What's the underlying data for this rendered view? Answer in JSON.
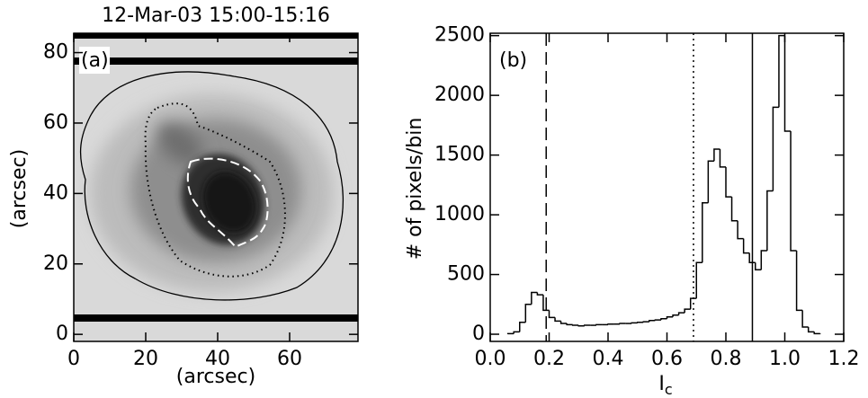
{
  "chart_data": [
    {
      "type": "image",
      "title": "12-Mar-03 15:00-15:16",
      "panel_label": "(a)",
      "x_label": "(arcsec)",
      "y_label": "(arcsec)",
      "xlim": [
        0,
        79
      ],
      "ylim": [
        -2,
        85.5
      ],
      "xticks": [
        0,
        20,
        40,
        60
      ],
      "yticks": [
        0,
        20,
        40,
        60,
        80
      ]
    },
    {
      "type": "histogram",
      "panel_label": "(b)",
      "x_label": "I",
      "x_label_sub": "c",
      "y_label": "# of pixels/bin",
      "xlim": [
        0,
        1.2
      ],
      "ylim": [
        -60,
        2520
      ],
      "xticks": [
        {
          "value": 0,
          "label": "0.0"
        },
        0.2,
        0.4,
        0.6,
        0.8,
        {
          "value": 1,
          "label": "1.0"
        },
        1.2
      ],
      "yticks": [
        0,
        500,
        1000,
        1500,
        2000,
        2500
      ],
      "color": "#000000",
      "bins": [
        0.06,
        0.08,
        0.1,
        0.12,
        0.14,
        0.16,
        0.18,
        0.2,
        0.22,
        0.24,
        0.26,
        0.28,
        0.3,
        0.32,
        0.34,
        0.36,
        0.38,
        0.4,
        0.42,
        0.44,
        0.46,
        0.48,
        0.5,
        0.52,
        0.54,
        0.56,
        0.58,
        0.6,
        0.62,
        0.64,
        0.66,
        0.68,
        0.7,
        0.72,
        0.74,
        0.76,
        0.78,
        0.8,
        0.82,
        0.84,
        0.86,
        0.88,
        0.9,
        0.92,
        0.94,
        0.96,
        0.98,
        1.0,
        1.02,
        1.04,
        1.06,
        1.08,
        1.1,
        1.12
      ],
      "counts": [
        5,
        20,
        100,
        250,
        350,
        330,
        200,
        140,
        110,
        90,
        80,
        75,
        70,
        75,
        75,
        80,
        80,
        85,
        85,
        90,
        90,
        95,
        100,
        105,
        115,
        120,
        130,
        145,
        160,
        180,
        210,
        300,
        600,
        1100,
        1450,
        1550,
        1400,
        1150,
        950,
        800,
        680,
        600,
        540,
        700,
        1200,
        1900,
        2500,
        1700,
        700,
        200,
        60,
        20,
        5
      ],
      "vlines": [
        {
          "value": 0.19,
          "style": "dashed"
        },
        {
          "value": 0.69,
          "style": "dotted"
        },
        {
          "value": 0.89,
          "style": "solid"
        }
      ]
    }
  ]
}
